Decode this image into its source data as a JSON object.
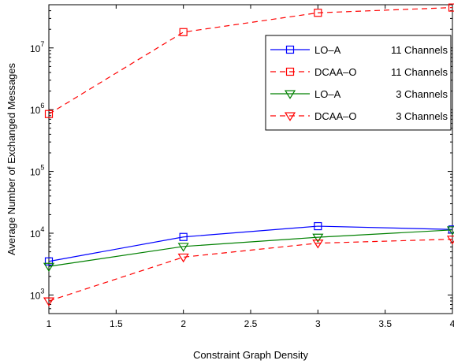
{
  "chart_data": {
    "type": "line",
    "title": "",
    "xlabel": "Constraint Graph Density",
    "ylabel": "Average Number of Exchanged Messages",
    "x": [
      1,
      2,
      3,
      4
    ],
    "xlim": [
      1,
      4
    ],
    "ylim": [
      500,
      50000000
    ],
    "y_scale": "log",
    "grid": false,
    "legend_position": "top-right",
    "x_ticks": [
      "1",
      "1.5",
      "2",
      "2.5",
      "3",
      "3.5",
      "4"
    ],
    "y_ticks": [
      {
        "base": "10",
        "exp": "3",
        "value": 1000
      },
      {
        "base": "10",
        "exp": "4",
        "value": 10000
      },
      {
        "base": "10",
        "exp": "5",
        "value": 100000
      },
      {
        "base": "10",
        "exp": "6",
        "value": 1000000
      },
      {
        "base": "10",
        "exp": "7",
        "value": 10000000
      }
    ],
    "series": [
      {
        "name": "LO–A",
        "channels": "11 Channels",
        "values": [
          3500,
          8700,
          13000,
          11500
        ],
        "color": "#0000ff",
        "dash": "solid",
        "marker": "square"
      },
      {
        "name": "DCAA–O",
        "channels": "11 Channels",
        "values": [
          850000,
          18000000,
          37000000,
          45000000
        ],
        "color": "#ff0000",
        "dash": "dashed",
        "marker": "square"
      },
      {
        "name": "LO–A",
        "channels": "3 Channels",
        "values": [
          2900,
          6100,
          8600,
          11300
        ],
        "color": "#008000",
        "dash": "solid",
        "marker": "triangle-down"
      },
      {
        "name": "DCAA–O",
        "channels": "3 Channels",
        "values": [
          800,
          4100,
          6900,
          8000
        ],
        "color": "#ff0000",
        "dash": "dashed",
        "marker": "triangle-down"
      }
    ]
  }
}
